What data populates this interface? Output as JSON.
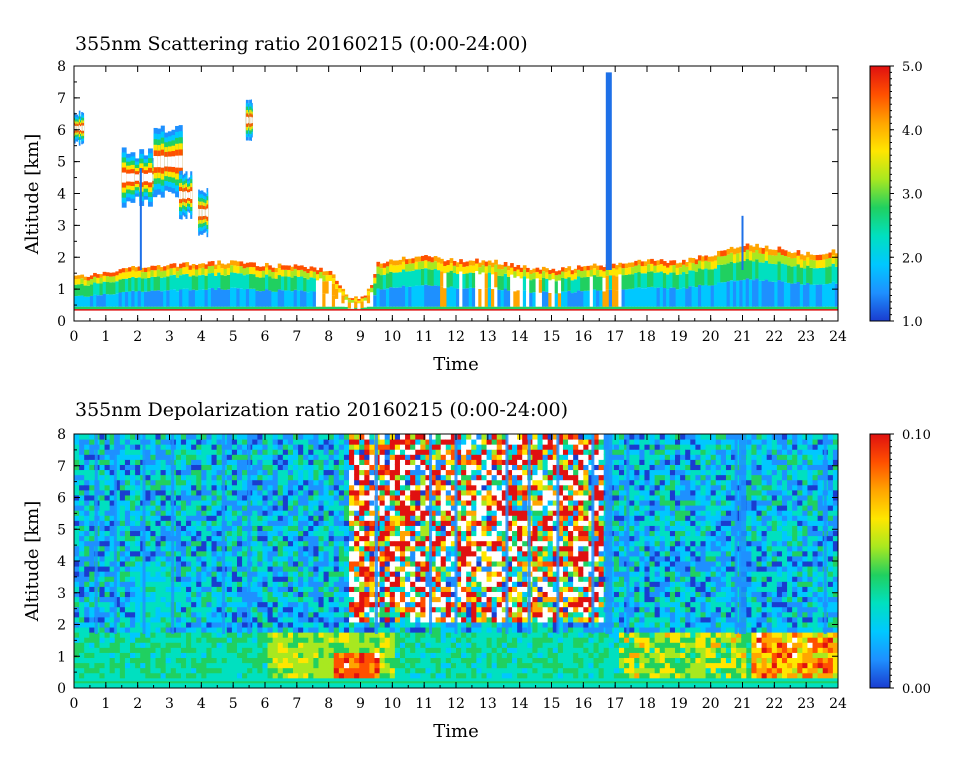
{
  "colors": [
    "#1a3ccf",
    "#1e90ff",
    "#00c8ff",
    "#00e0c0",
    "#20d060",
    "#a8e820",
    "#ffe600",
    "#ffa500",
    "#ff5000",
    "#e01010"
  ],
  "chart_data": [
    {
      "type": "heatmap",
      "title": "355nm Scattering ratio  20160215 (0:00-24:00)",
      "xlabel": "Time",
      "ylabel": "Altitude [km]",
      "xlim": [
        0,
        24
      ],
      "ylim": [
        0,
        8
      ],
      "x_ticks": [
        "0",
        "1",
        "2",
        "3",
        "4",
        "5",
        "6",
        "7",
        "8",
        "9",
        "10",
        "11",
        "12",
        "13",
        "14",
        "15",
        "16",
        "17",
        "18",
        "19",
        "20",
        "21",
        "22",
        "23",
        "24"
      ],
      "y_ticks": [
        "0",
        "1",
        "2",
        "3",
        "4",
        "5",
        "6",
        "7",
        "8"
      ],
      "colorbar": {
        "min": 1.0,
        "max": 5.0,
        "labels": [
          "1.0",
          "2.0",
          "3.0",
          "4.0",
          "5.0"
        ]
      },
      "cloud_top_km": [
        [
          0,
          1.4
        ],
        [
          1,
          1.5
        ],
        [
          1.5,
          1.65
        ],
        [
          2,
          1.7
        ],
        [
          3,
          1.75
        ],
        [
          4,
          1.8
        ],
        [
          5,
          1.85
        ],
        [
          6,
          1.75
        ],
        [
          7,
          1.7
        ],
        [
          8,
          1.6
        ],
        [
          8.5,
          0.8
        ],
        [
          9,
          0.7
        ],
        [
          9.3,
          1.2
        ],
        [
          9.5,
          1.8
        ],
        [
          10,
          1.95
        ],
        [
          11,
          2.0
        ],
        [
          12,
          1.9
        ],
        [
          13,
          1.9
        ],
        [
          14,
          1.7
        ],
        [
          15,
          1.6
        ],
        [
          16,
          1.7
        ],
        [
          17,
          1.8
        ],
        [
          18,
          1.9
        ],
        [
          19,
          1.85
        ],
        [
          20,
          2.1
        ],
        [
          21,
          2.4
        ],
        [
          22,
          2.3
        ],
        [
          23,
          2.1
        ],
        [
          24,
          2.2
        ]
      ],
      "cirrus_patches": [
        {
          "t_start": 0.0,
          "t_end": 0.3,
          "alt_bottom_km": 5.5,
          "alt_top_km": 6.6
        },
        {
          "t_start": 1.5,
          "t_end": 2.6,
          "alt_bottom_km": 3.5,
          "alt_top_km": 5.5
        },
        {
          "t_start": 2.5,
          "t_end": 3.4,
          "alt_bottom_km": 3.8,
          "alt_top_km": 6.2
        },
        {
          "t_start": 3.3,
          "t_end": 3.7,
          "alt_bottom_km": 3.1,
          "alt_top_km": 4.8
        },
        {
          "t_start": 3.9,
          "t_end": 4.2,
          "alt_bottom_km": 2.6,
          "alt_top_km": 4.2
        },
        {
          "t_start": 5.4,
          "t_end": 5.6,
          "alt_bottom_km": 5.6,
          "alt_top_km": 7.0
        }
      ],
      "vertical_spikes": [
        {
          "t": 2.1,
          "alt_top_km": 4.8,
          "level": 1.6
        },
        {
          "t": 16.8,
          "alt_top_km": 7.8,
          "level": 1.1
        },
        {
          "t": 21.0,
          "alt_top_km": 3.3,
          "level": 1.5
        }
      ]
    },
    {
      "type": "heatmap",
      "title": "355nm Depolarization ratio  20160215 (0:00-24:00)",
      "xlabel": "Time",
      "ylabel": "Altitude [km]",
      "xlim": [
        0,
        24
      ],
      "ylim": [
        0,
        8
      ],
      "x_ticks": [
        "0",
        "1",
        "2",
        "3",
        "4",
        "5",
        "6",
        "7",
        "8",
        "9",
        "10",
        "11",
        "12",
        "13",
        "14",
        "15",
        "16",
        "17",
        "18",
        "19",
        "20",
        "21",
        "22",
        "23",
        "24"
      ],
      "y_ticks": [
        "0",
        "1",
        "2",
        "3",
        "4",
        "5",
        "6",
        "7",
        "8"
      ],
      "colorbar": {
        "min": 0.0,
        "max": 0.1,
        "labels": [
          "0.00",
          "0.10"
        ]
      },
      "low_layer_top_km": 1.7,
      "noisy_region": {
        "t_start": 8.5,
        "t_end": 16.5,
        "alt_bottom_km": 2.0,
        "alt_top_km": 8.0
      },
      "vertical_streaks_t": [
        0.7,
        1.3,
        2.2,
        3.1,
        4.7,
        5.5,
        9.5,
        11.2,
        12.0,
        13.6,
        14.3,
        15.2,
        16.3,
        16.8,
        17.4,
        20.8,
        21.0,
        23.6
      ]
    }
  ]
}
